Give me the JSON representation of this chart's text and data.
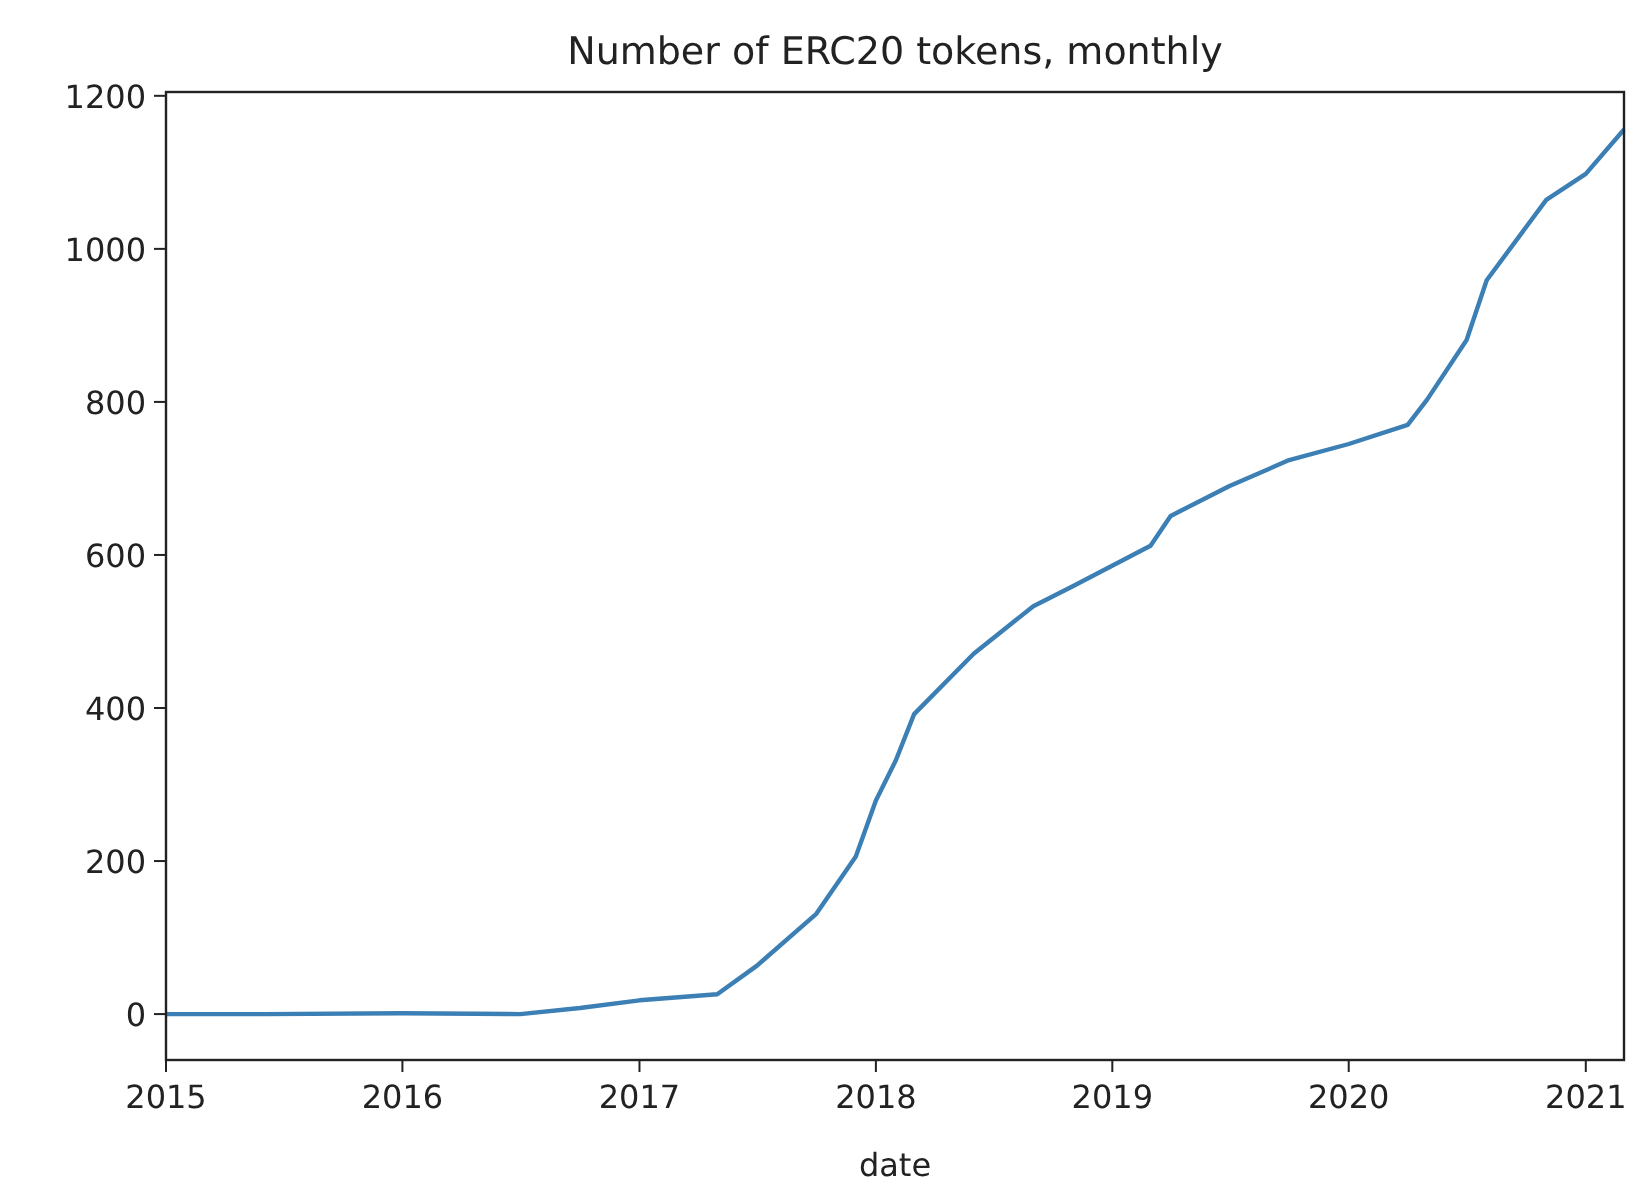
{
  "chart_data": {
    "type": "line",
    "title": "Number of ERC20 tokens, monthly",
    "xlabel": "date",
    "x": [
      "2015-01",
      "2015-06",
      "2016-01",
      "2016-07",
      "2016-10",
      "2017-01",
      "2017-05",
      "2017-07",
      "2017-10",
      "2017-12",
      "2018-01",
      "2018-02",
      "2018-03",
      "2018-06",
      "2018-09",
      "2018-11",
      "2019-03",
      "2019-04",
      "2019-07",
      "2019-10",
      "2020-01",
      "2020-04",
      "2020-05",
      "2020-07",
      "2020-08",
      "2020-11",
      "2021-01",
      "2021-03"
    ],
    "series": [
      {
        "color": "#3b7fb5",
        "values": [
          0,
          0,
          1,
          0,
          8,
          18,
          26,
          63,
          131,
          206,
          279,
          332,
          392,
          471,
          533,
          559,
          612,
          651,
          690,
          724,
          745,
          770,
          803,
          881,
          959,
          1064,
          1098,
          1156
        ]
      }
    ],
    "xlim": [
      "2015-01",
      "2021-03"
    ],
    "xticks": [
      {
        "value": "2015-01",
        "label": "2015"
      },
      {
        "value": "2016-01",
        "label": "2016"
      },
      {
        "value": "2017-01",
        "label": "2017"
      },
      {
        "value": "2018-01",
        "label": "2018"
      },
      {
        "value": "2019-01",
        "label": "2019"
      },
      {
        "value": "2020-01",
        "label": "2020"
      },
      {
        "value": "2021-01",
        "label": "2021"
      }
    ],
    "ylim": [
      -60,
      1205
    ],
    "yticks": [
      0,
      200,
      400,
      600,
      800,
      1000,
      1200
    ],
    "grid": false,
    "line_style": "solid",
    "marker": "none"
  }
}
